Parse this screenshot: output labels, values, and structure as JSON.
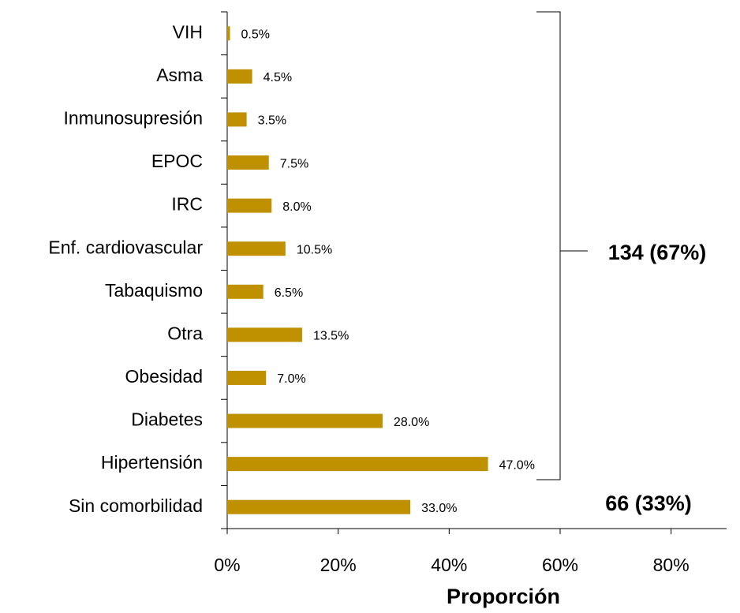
{
  "chart_data": {
    "type": "bar",
    "orientation": "horizontal",
    "categories": [
      "VIH",
      "Asma",
      "Inmunosupresión",
      "EPOC",
      "IRC",
      "Enf. cardiovascular",
      "Tabaquismo",
      "Otra",
      "Obesidad",
      "Diabetes",
      "Hipertensión",
      "Sin comorbilidad"
    ],
    "values": [
      0.5,
      4.5,
      3.5,
      7.5,
      8.0,
      10.5,
      6.5,
      13.5,
      7.0,
      28.0,
      47.0,
      33.0
    ],
    "value_labels": [
      "0.5%",
      "4.5%",
      "3.5%",
      "7.5%",
      "8.0%",
      "10.5%",
      "6.5%",
      "13.5%",
      "7.0%",
      "28.0%",
      "47.0%",
      "33.0%"
    ],
    "color": "#bf9000",
    "xlim": [
      0,
      90
    ],
    "xticks": [
      {
        "value": 0,
        "label": "0%"
      },
      {
        "value": 20,
        "label": "20%"
      },
      {
        "value": 40,
        "label": "40%"
      },
      {
        "value": 60,
        "label": "60%"
      },
      {
        "value": 80,
        "label": "80%"
      }
    ],
    "x_label": "Proporción",
    "annotations": [
      "134 (67%)",
      "66 (33%)"
    ]
  }
}
